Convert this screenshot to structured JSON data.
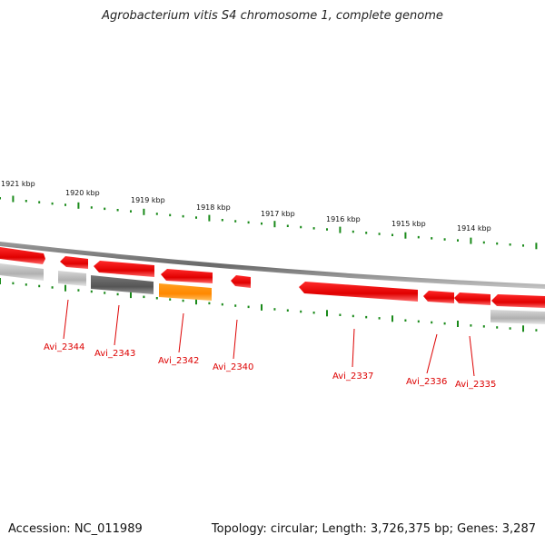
{
  "title": "Agrobacterium vitis S4 chromosome 1, complete genome",
  "footer": {
    "accession": "Accession: NC_011989",
    "summary": "Topology: circular; Length: 3,726,375 bp; Genes: 3,287"
  },
  "colors": {
    "gene_red": "#ee0000",
    "pseudo_gray": "#bbbbbb",
    "dark_gray": "#666666",
    "orange": "#ff8800",
    "tick_green": "#1a8a1a",
    "backbone": "#888888",
    "label_red": "#dd0000"
  },
  "kbp_labels": [
    "1921 kbp",
    "1920 kbp",
    "1919 kbp",
    "1918 kbp",
    "1917 kbp",
    "1916 kbp",
    "1915 kbp",
    "1914 kbp"
  ],
  "gene_labels": [
    "Avi_2344",
    "Avi_2343",
    "Avi_2342",
    "Avi_2340",
    "Avi_2337",
    "Avi_2336",
    "Avi_2335"
  ]
}
